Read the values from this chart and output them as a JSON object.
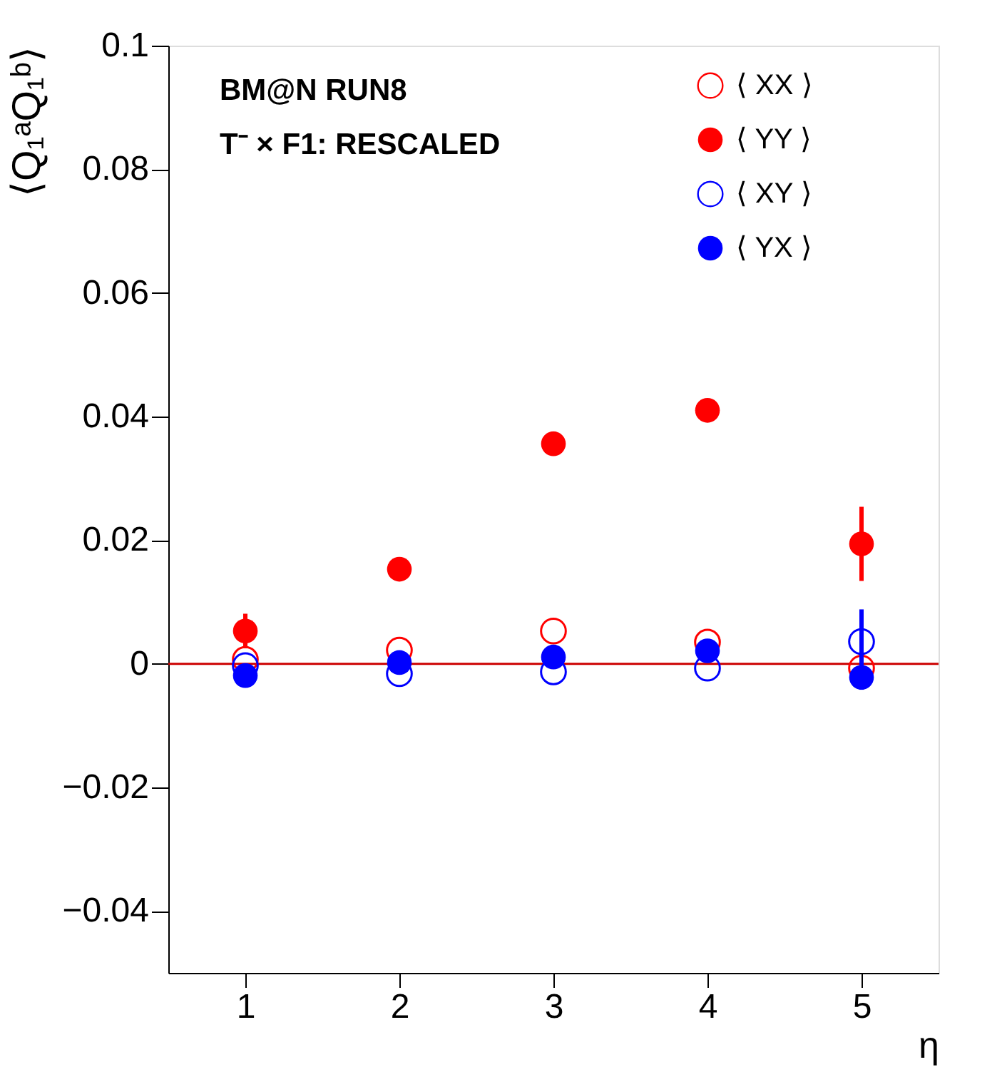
{
  "chart_data": {
    "type": "scatter",
    "xlabel": "η",
    "ylabel": "⟨Q₁ᵃQ₁ᵇ⟩",
    "annotations": [
      "BM@N RUN8",
      "T⁻ × F1: RESCALED"
    ],
    "x": [
      1,
      2,
      3,
      4,
      5
    ],
    "series": [
      {
        "name": "⟨ XX ⟩",
        "color": "#ff0000",
        "marker": "open circle",
        "values": [
          0.0007,
          0.0022,
          0.0053,
          0.0035,
          -0.0007
        ],
        "errors": [
          null,
          null,
          null,
          null,
          null
        ]
      },
      {
        "name": "⟨ YY ⟩",
        "color": "#ff0000",
        "marker": "circle",
        "values": [
          0.0053,
          0.0153,
          0.0356,
          0.041,
          0.0194
        ],
        "errors": [
          0.0028,
          null,
          null,
          null,
          0.006
        ]
      },
      {
        "name": "⟨ XY ⟩",
        "color": "#0000ff",
        "marker": "open circle",
        "values": [
          -0.0003,
          -0.0016,
          -0.0013,
          -0.0007,
          0.0036
        ],
        "errors": [
          null,
          null,
          null,
          null,
          0.0052
        ]
      },
      {
        "name": "⟨ YX ⟩",
        "color": "#0000ff",
        "marker": "circle",
        "values": [
          -0.0019,
          0.0002,
          0.0011,
          0.0021,
          -0.0022
        ],
        "errors": [
          null,
          null,
          null,
          null,
          0.002
        ]
      }
    ],
    "xlim": [
      0.5,
      5.5
    ],
    "xticks": [
      1,
      2,
      3,
      4,
      5
    ],
    "ylim": [
      -0.05,
      0.1
    ],
    "yticks": [
      -0.04,
      -0.02,
      0,
      0.02,
      0.04,
      0.06,
      0.08,
      0.1
    ],
    "ref_lines": [
      {
        "axis": "y",
        "value": 0,
        "color": "#cc0000"
      }
    ],
    "legend": "top right",
    "grid": false
  }
}
